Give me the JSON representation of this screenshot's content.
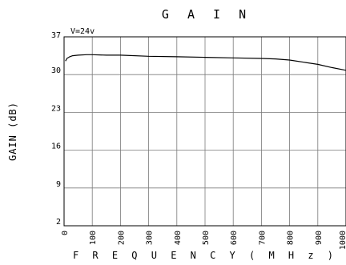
{
  "chart_data": {
    "type": "line",
    "title": "G A I N",
    "xlabel": "F R E Q U E N C Y   ( M H z )",
    "ylabel": "GAIN (dB)",
    "annotation": "V=24v",
    "xlim": [
      0,
      1000
    ],
    "ylim": [
      2,
      37
    ],
    "grid": true,
    "x_ticks": [
      0,
      100,
      200,
      300,
      400,
      500,
      600,
      700,
      800,
      900,
      1000
    ],
    "x_tick_labels": [
      "0",
      "100",
      "200",
      "300",
      "400",
      "500",
      "600",
      "700",
      "800",
      "900",
      "1000"
    ],
    "y_ticks": [
      2,
      9,
      16,
      23,
      30,
      37
    ],
    "y_tick_labels": [
      "2",
      "9",
      "16",
      "23",
      "30",
      "37"
    ],
    "series": [
      {
        "x": [
          5,
          10,
          20,
          30,
          50,
          80,
          100,
          150,
          200,
          300,
          400,
          500,
          600,
          700,
          750,
          800,
          850,
          900,
          950,
          1000
        ],
        "y": [
          32.5,
          33.0,
          33.3,
          33.5,
          33.6,
          33.7,
          33.7,
          33.6,
          33.6,
          33.4,
          33.3,
          33.2,
          33.1,
          33.0,
          32.9,
          32.7,
          32.3,
          31.9,
          31.3,
          30.8
        ]
      }
    ]
  }
}
